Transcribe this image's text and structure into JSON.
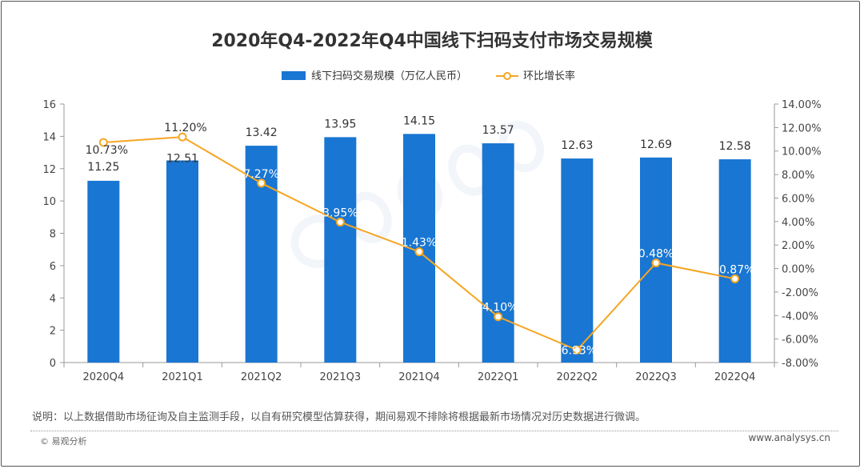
{
  "chart_data": {
    "type": "bar+line",
    "title": "2020年Q4-2022年Q4中国线下扫码支付市场交易规模",
    "categories": [
      "2020Q4",
      "2021Q1",
      "2021Q2",
      "2021Q3",
      "2021Q4",
      "2022Q1",
      "2022Q2",
      "2022Q3",
      "2022Q4"
    ],
    "series": [
      {
        "name": "线下扫码交易规模（万亿人民币）",
        "type": "bar",
        "axis": "left",
        "color": "#1976d2",
        "values": [
          11.25,
          12.51,
          13.42,
          13.95,
          14.15,
          13.57,
          12.63,
          12.69,
          12.58
        ],
        "labels": [
          "11.25",
          "12.51",
          "13.42",
          "13.95",
          "14.15",
          "13.57",
          "12.63",
          "12.69",
          "12.58"
        ]
      },
      {
        "name": "环比增长率",
        "type": "line",
        "axis": "right",
        "color": "#f5a623",
        "values": [
          10.73,
          11.2,
          7.27,
          3.95,
          1.43,
          -4.1,
          -6.93,
          0.48,
          -0.87
        ],
        "labels": [
          "10.73%",
          "11.20%",
          "7.27%",
          "3.95%",
          "1.43%",
          "-4.10%",
          "-6.93%",
          "0.48%",
          "-0.87%"
        ]
      }
    ],
    "ylim_left": [
      0,
      16
    ],
    "yticks_left": [
      "0",
      "2",
      "4",
      "6",
      "8",
      "10",
      "12",
      "14",
      "16"
    ],
    "ylim_right": [
      -8,
      14
    ],
    "yticks_right": [
      "-8.00%",
      "-6.00%",
      "-4.00%",
      "-2.00%",
      "0.00%",
      "2.00%",
      "4.00%",
      "6.00%",
      "8.00%",
      "10.00%",
      "12.00%",
      "14.00%"
    ],
    "grid": false,
    "legend_position": "top"
  },
  "footer": {
    "note": "说明：以上数据借助市场征询及自主监测手段，以自有研究模型估算获得，期间易观不排除将根据最新市场情况对历史数据进行微调。",
    "copyright": "© 易观分析",
    "website": "www.analysys.cn"
  },
  "watermark": "analysys 易观分析"
}
